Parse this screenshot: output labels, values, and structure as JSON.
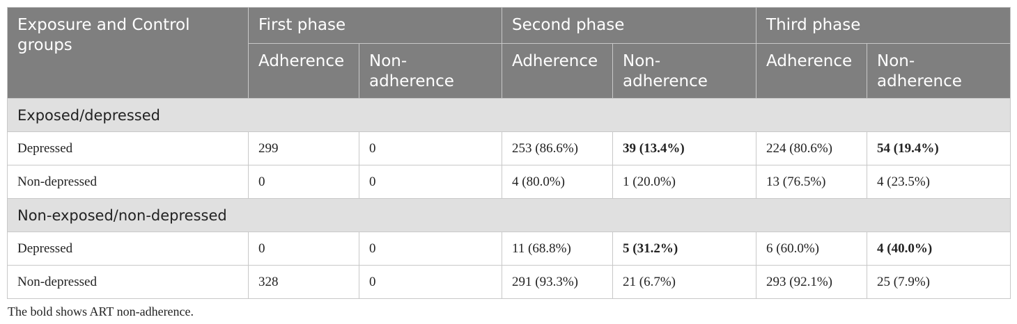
{
  "header": {
    "group_col": "Exposure and Control groups",
    "phases": [
      "First phase",
      "Second phase",
      "Third phase"
    ],
    "adherence": "Adherence",
    "non_adherence": "Non-adherence"
  },
  "sections": [
    {
      "title": "Exposed/depressed",
      "rows": [
        {
          "label": "Depressed",
          "cells": [
            "299",
            "0",
            "253 (86.6%)",
            "39 (13.4%)",
            "224 (80.6%)",
            "54 (19.4%)"
          ],
          "bold": [
            3,
            5
          ]
        },
        {
          "label": "Non-depressed",
          "cells": [
            "0",
            "0",
            "4 (80.0%)",
            "1 (20.0%)",
            "13 (76.5%)",
            "4 (23.5%)"
          ],
          "bold": []
        }
      ]
    },
    {
      "title": "Non-exposed/non-depressed",
      "rows": [
        {
          "label": "Depressed",
          "cells": [
            "0",
            "0",
            "11 (68.8%)",
            "5 (31.2%)",
            "6 (60.0%)",
            "4 (40.0%)"
          ],
          "bold": [
            3,
            5
          ]
        },
        {
          "label": "Non-depressed",
          "cells": [
            "328",
            "0",
            "291 (93.3%)",
            "21 (6.7%)",
            "293 (92.1%)",
            "25 (7.9%)"
          ],
          "bold": []
        }
      ]
    }
  ],
  "footnote": "The bold shows ART non-adherence."
}
